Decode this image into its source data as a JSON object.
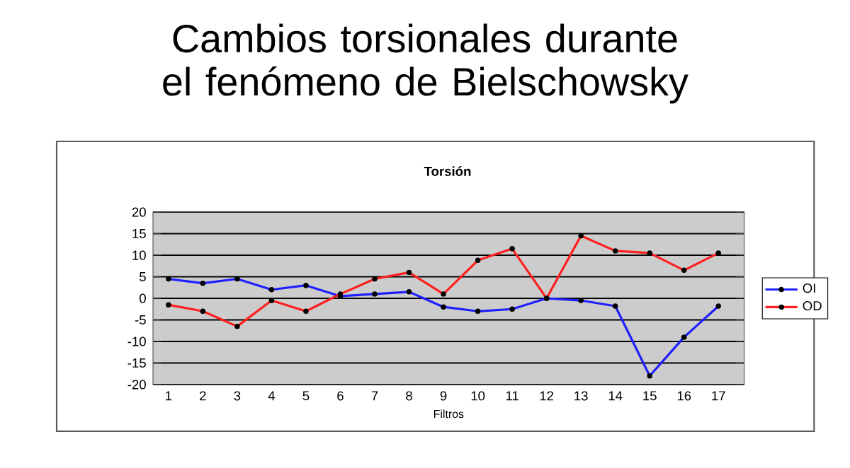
{
  "chart_data": {
    "type": "line",
    "title": "Cambios torsionales durante el fenómeno de Bielschowsky",
    "subtitle": "Torsión",
    "xlabel": "Filtros",
    "categories": [
      "1",
      "2",
      "3",
      "4",
      "5",
      "6",
      "7",
      "8",
      "9",
      "10",
      "11",
      "12",
      "13",
      "14",
      "15",
      "16",
      "17"
    ],
    "series": [
      {
        "name": "OI",
        "color": "#1f1fff",
        "values": [
          4.5,
          3.5,
          4.5,
          2,
          3,
          0.5,
          1,
          1.5,
          -2,
          -3,
          -2.5,
          0,
          -0.5,
          -1.8,
          -18,
          -9,
          -1.8
        ]
      },
      {
        "name": "OD",
        "color": "#ff1f1f",
        "values": [
          -1.5,
          -3,
          -6.5,
          -0.5,
          -3,
          1,
          4.5,
          6,
          1,
          8.8,
          11.5,
          0,
          14.5,
          11,
          10.5,
          6.5,
          10.5
        ]
      }
    ],
    "ylim": [
      -20,
      20
    ],
    "yticks": [
      -20,
      -15,
      -10,
      -5,
      0,
      5,
      10,
      15,
      20
    ],
    "grid": "y",
    "legend": "right",
    "marker": "circle",
    "line_style": "solid"
  }
}
